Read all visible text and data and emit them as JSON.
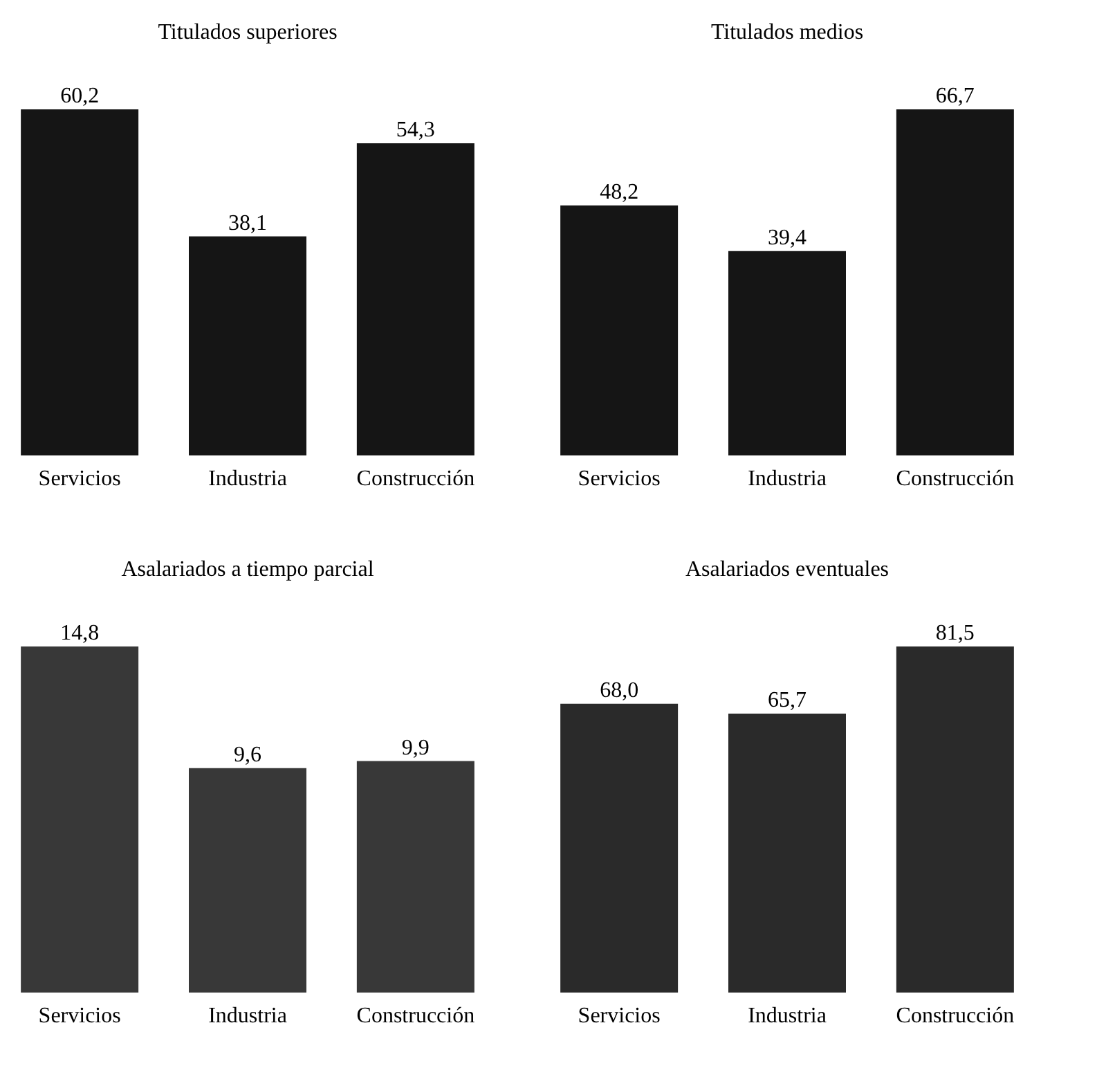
{
  "chart_data": [
    {
      "type": "bar",
      "title": "Titulados superiores",
      "categories": [
        "Servicios",
        "Industria",
        "Construcción"
      ],
      "values": [
        60.2,
        38.1,
        54.3
      ],
      "color": "#151515",
      "value_labels": [
        "60,2",
        "38,1",
        "54,3"
      ]
    },
    {
      "type": "bar",
      "title": "Titulados medios",
      "categories": [
        "Servicios",
        "Industria",
        "Construcción"
      ],
      "values": [
        48.2,
        39.4,
        66.7
      ],
      "color": "#151515",
      "value_labels": [
        "48,2",
        "39,4",
        "66,7"
      ]
    },
    {
      "type": "bar",
      "title": "Asalariados a tiempo parcial",
      "categories": [
        "Servicios",
        "Industria",
        "Construcción"
      ],
      "values": [
        14.8,
        9.6,
        9.9
      ],
      "color": "#383838",
      "value_labels": [
        "14,8",
        "9,6",
        "9,9"
      ]
    },
    {
      "type": "bar",
      "title": "Asalariados eventuales",
      "categories": [
        "Servicios",
        "Industria",
        "Construcción"
      ],
      "values": [
        68.0,
        65.7,
        81.5
      ],
      "color": "#2a2a2a",
      "value_labels": [
        "68,0",
        "65,7",
        "81,5"
      ]
    }
  ]
}
